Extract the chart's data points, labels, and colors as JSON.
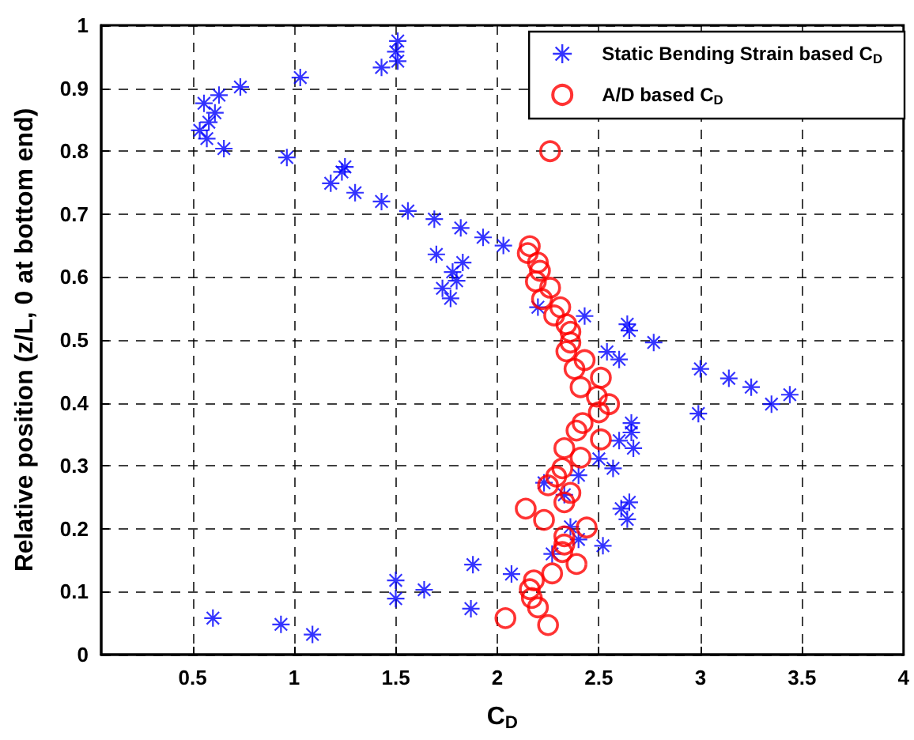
{
  "chart_data": {
    "type": "scatter",
    "xlabel": "C$_{D}$",
    "ylabel": "Relative position (z/L, 0 at bottom end)",
    "xlim": [
      0.05,
      4
    ],
    "xticks": [
      0.5,
      1,
      1.5,
      2,
      2.5,
      3,
      3.5,
      4
    ],
    "ylim": [
      0,
      1
    ],
    "yticks": [
      0,
      0.1,
      0.2,
      0.3,
      0.4,
      0.5,
      0.6,
      0.7,
      0.8,
      0.9,
      1
    ],
    "grid": true,
    "legend": "top right",
    "series": [
      {
        "name": "Static Bending Strain based C$_{D}$",
        "color": "#0000ff",
        "marker": "star",
        "x": [
          1.51,
          1.5,
          1.51,
          1.43,
          1.03,
          0.735,
          0.63,
          0.556,
          0.61,
          0.58,
          0.535,
          0.57,
          0.654,
          0.964,
          1.25,
          1.235,
          1.18,
          1.3,
          1.43,
          1.56,
          1.69,
          1.82,
          1.93,
          2.03,
          1.7,
          1.83,
          1.78,
          1.8,
          1.73,
          1.77,
          2.2,
          2.43,
          2.64,
          2.65,
          2.77,
          2.54,
          2.6,
          3.0,
          3.14,
          3.25,
          3.35,
          3.44,
          2.99,
          2.66,
          2.66,
          2.6,
          2.67,
          2.5,
          2.57,
          2.4,
          2.23,
          2.33,
          2.65,
          2.61,
          2.64,
          2.36,
          2.4,
          2.52,
          2.27,
          2.07,
          1.88,
          1.87,
          0.6,
          0.935,
          1.09,
          1.5,
          1.5,
          1.64
        ],
        "values": [
          0.975,
          0.958,
          0.943,
          0.933,
          0.917,
          0.902,
          0.889,
          0.876,
          0.861,
          0.846,
          0.833,
          0.82,
          0.804,
          0.79,
          0.775,
          0.767,
          0.749,
          0.734,
          0.72,
          0.705,
          0.692,
          0.678,
          0.663,
          0.65,
          0.636,
          0.623,
          0.608,
          0.594,
          0.582,
          0.566,
          0.552,
          0.538,
          0.525,
          0.515,
          0.496,
          0.481,
          0.469,
          0.454,
          0.439,
          0.425,
          0.398,
          0.413,
          0.383,
          0.368,
          0.353,
          0.34,
          0.328,
          0.311,
          0.296,
          0.285,
          0.273,
          0.254,
          0.242,
          0.232,
          0.215,
          0.203,
          0.183,
          0.173,
          0.16,
          0.128,
          0.143,
          0.073,
          0.058,
          0.048,
          0.032,
          0.118,
          0.089,
          0.103
        ]
      },
      {
        "name": "A/D based C$_{D}$",
        "color": "#ff0000",
        "marker": "circle",
        "x": [
          2.26,
          2.16,
          2.15,
          2.2,
          2.21,
          2.19,
          2.26,
          2.22,
          2.31,
          2.28,
          2.34,
          2.36,
          2.36,
          2.34,
          2.43,
          2.38,
          2.51,
          2.41,
          2.49,
          2.55,
          2.5,
          2.42,
          2.39,
          2.51,
          2.33,
          2.41,
          2.32,
          2.29,
          2.25,
          2.36,
          2.33,
          2.14,
          2.23,
          2.44,
          2.33,
          2.33,
          2.32,
          2.39,
          2.27,
          2.18,
          2.16,
          2.17,
          2.2,
          2.04,
          2.25
        ],
        "values": [
          0.8,
          0.649,
          0.638,
          0.623,
          0.61,
          0.593,
          0.583,
          0.565,
          0.552,
          0.539,
          0.525,
          0.513,
          0.496,
          0.482,
          0.468,
          0.454,
          0.44,
          0.425,
          0.41,
          0.398,
          0.385,
          0.368,
          0.356,
          0.342,
          0.328,
          0.313,
          0.296,
          0.283,
          0.269,
          0.257,
          0.242,
          0.232,
          0.214,
          0.202,
          0.188,
          0.175,
          0.163,
          0.144,
          0.129,
          0.118,
          0.104,
          0.09,
          0.075,
          0.058,
          0.047
        ]
      }
    ]
  }
}
